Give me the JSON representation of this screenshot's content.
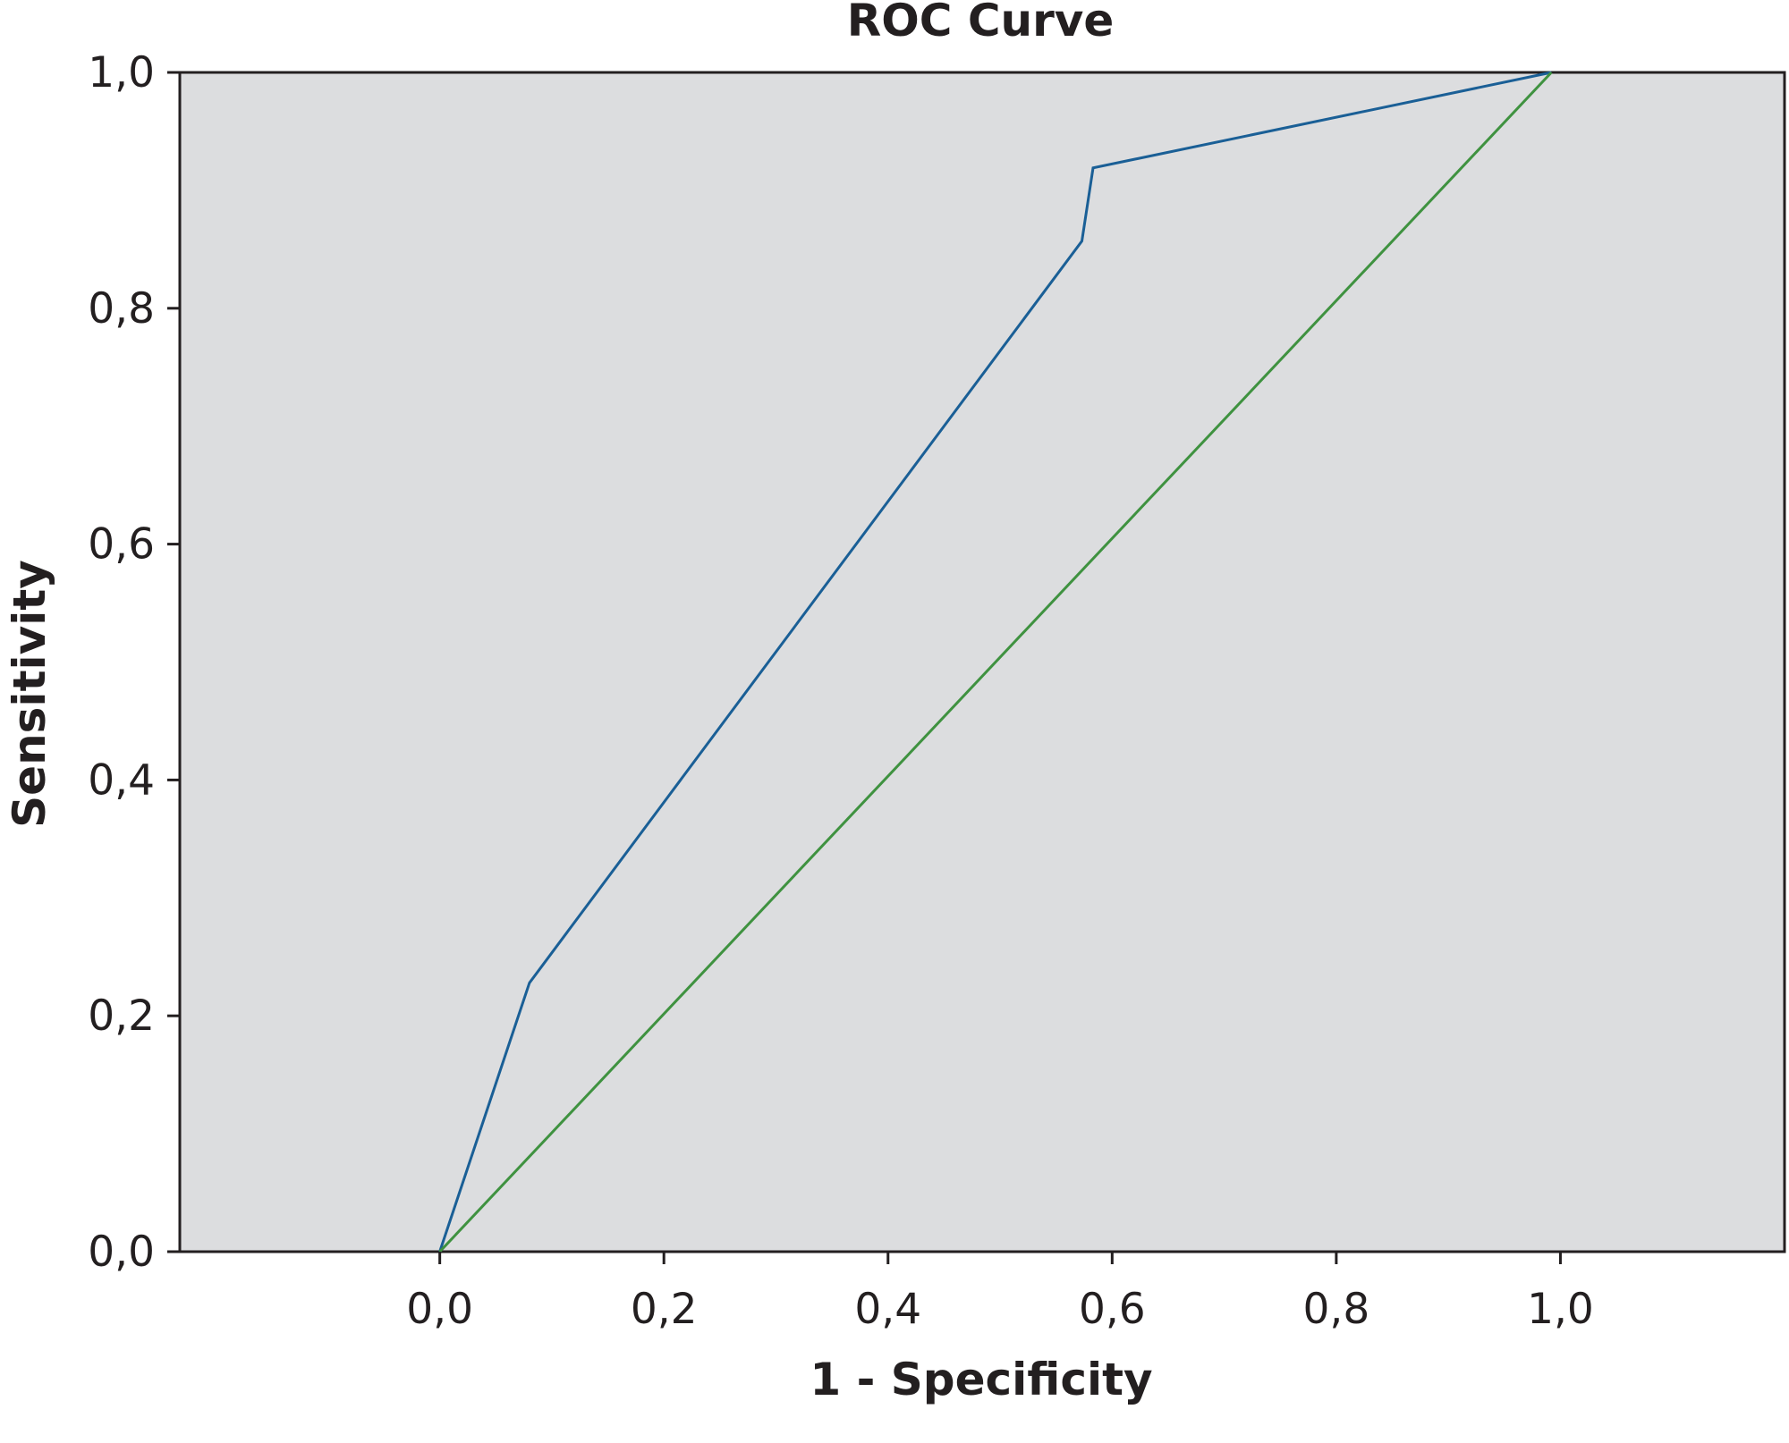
{
  "chart_data": {
    "type": "line",
    "title": "ROC Curve",
    "xlabel": "1 - Specificity",
    "ylabel": "Sensitivity",
    "xlim": [
      -0.232,
      1.2
    ],
    "ylim": [
      0,
      1.0
    ],
    "x_ticks": [
      {
        "value": 0.0,
        "label": "0,0"
      },
      {
        "value": 0.2,
        "label": "0,2"
      },
      {
        "value": 0.4,
        "label": "0,4"
      },
      {
        "value": 0.6,
        "label": "0,6"
      },
      {
        "value": 0.8,
        "label": "0,8"
      },
      {
        "value": 1.0,
        "label": "1,0"
      }
    ],
    "y_ticks": [
      {
        "value": 0.0,
        "label": "0,0"
      },
      {
        "value": 0.2,
        "label": "0,2"
      },
      {
        "value": 0.4,
        "label": "0,4"
      },
      {
        "value": 0.6,
        "label": "0,6"
      },
      {
        "value": 0.8,
        "label": "0,8"
      },
      {
        "value": 1.0,
        "label": "1,0"
      }
    ],
    "grid": false,
    "plot_background": "#dcdddf",
    "series": [
      {
        "color": "#1a5f96",
        "points": [
          {
            "x": 0.0,
            "y": 0.0
          },
          {
            "x": 0.08,
            "y": 0.228
          },
          {
            "x": 0.573,
            "y": 0.857
          },
          {
            "x": 0.583,
            "y": 0.919
          },
          {
            "x": 0.992,
            "y": 1.0
          }
        ]
      },
      {
        "color": "#3f9240",
        "points": [
          {
            "x": 0.0,
            "y": 0.0
          },
          {
            "x": 0.992,
            "y": 1.0
          }
        ]
      }
    ]
  }
}
